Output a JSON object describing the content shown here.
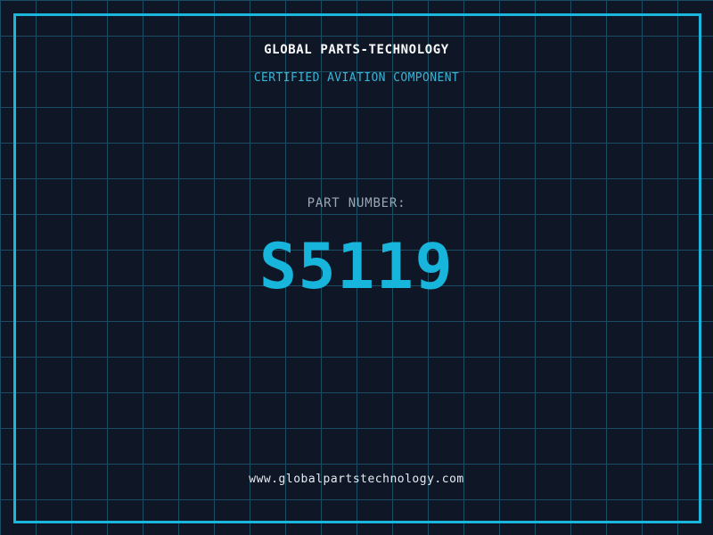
{
  "header": {
    "title": "GLOBAL PARTS-TECHNOLOGY",
    "subtitle": "CERTIFIED AVIATION COMPONENT"
  },
  "part": {
    "label": "PART NUMBER:",
    "number": "S5119"
  },
  "footer": {
    "website": "www.globalpartstechnology.com"
  },
  "colors": {
    "background": "#0f1726",
    "grid_line": "#1c4e63",
    "frame_border": "#1ab6dc",
    "title_text": "#f8fafc",
    "subtitle_text": "#3ab3d6",
    "part_label_text": "#9aa8b6",
    "part_number_text": "#17b5dc",
    "website_text": "#e4ebf2"
  }
}
